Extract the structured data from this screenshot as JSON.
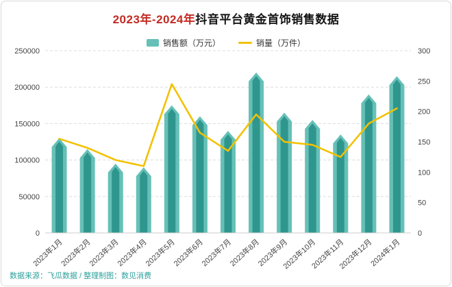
{
  "card": {
    "title_prefix": "2023年-2024年",
    "title_rest": "抖音平台黄金首饰销售数据",
    "footer": "数据来源：飞瓜数据 / 整理制图：数见消费"
  },
  "legend": {
    "position": "top",
    "items": [
      {
        "label": "销售额（万元）",
        "type": "bar"
      },
      {
        "label": "销量（万件）",
        "type": "line"
      }
    ]
  },
  "chart_data": {
    "type": "bar",
    "subtype": "bar+line dual axis",
    "title": "2023年-2024年抖音平台黄金首饰销售数据",
    "categories": [
      "2023年1月",
      "2023年2月",
      "2023年3月",
      "2023年4月",
      "2023年5月",
      "2023年6月",
      "2023年7月",
      "2023年8月",
      "2023年9月",
      "2023年10月",
      "2023年11月",
      "2023年12月",
      "2024年1月"
    ],
    "series": [
      {
        "name": "销售额（万元）",
        "type": "bar",
        "axis": "left",
        "values": [
          130000,
          115000,
          95000,
          90000,
          175000,
          160000,
          140000,
          220000,
          165000,
          155000,
          135000,
          190000,
          215000
        ]
      },
      {
        "name": "销量（万件）",
        "type": "line",
        "axis": "right",
        "values": [
          155,
          140,
          120,
          110,
          245,
          165,
          135,
          195,
          150,
          145,
          125,
          180,
          205
        ]
      }
    ],
    "left_axis": {
      "label": "销售额（万元）",
      "min": 0,
      "max": 250000,
      "step": 50000
    },
    "right_axis": {
      "label": "销量（万件）",
      "min": 0,
      "max": 300,
      "step": 50
    },
    "grid": true,
    "legend_position": "top"
  },
  "colors": {
    "bar_outer": "#66c0b7",
    "bar_inner": "#2f968e",
    "line": "#f2c100",
    "grid": "#dcdcdc",
    "axis_text": "#444444",
    "title_text": "#141414",
    "title_accent": "#c22a22",
    "footer_text": "#2fa29c"
  }
}
